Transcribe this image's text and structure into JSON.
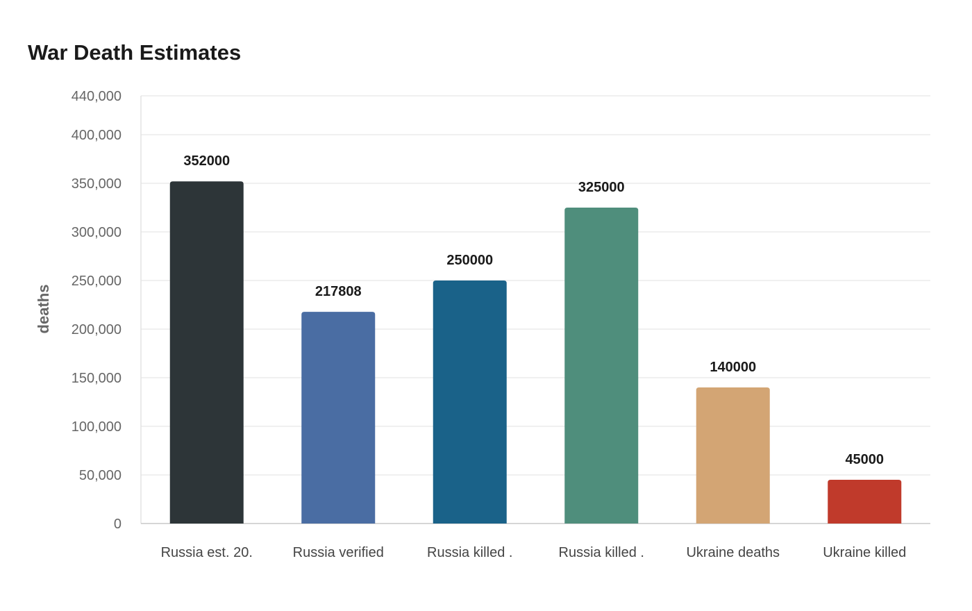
{
  "chart_data": {
    "type": "bar",
    "title": "War Death Estimates",
    "xlabel": "",
    "ylabel": "deaths",
    "ylim": [
      0,
      440000
    ],
    "yticks": [
      0,
      50000,
      100000,
      150000,
      200000,
      250000,
      300000,
      350000,
      400000,
      440000
    ],
    "ytick_labels": [
      "0",
      "50,000",
      "100,000",
      "150,000",
      "200,000",
      "250,000",
      "300,000",
      "350,000",
      "400,000",
      "440,000"
    ],
    "grid": true,
    "legend": "none",
    "categories": [
      "Russia est. 20.",
      "Russia verified",
      "Russia killed .",
      "Russia killed .",
      "Ukraine deaths",
      "Ukraine killed"
    ],
    "values": [
      352000,
      217808,
      250000,
      325000,
      140000,
      45000
    ],
    "data_labels": [
      "352000",
      "217808",
      "250000",
      "325000",
      "140000",
      "45000"
    ],
    "colors": [
      "#2d3538",
      "#4a6da3",
      "#1a6289",
      "#4f8e7c",
      "#d3a574",
      "#c03a2b"
    ]
  }
}
